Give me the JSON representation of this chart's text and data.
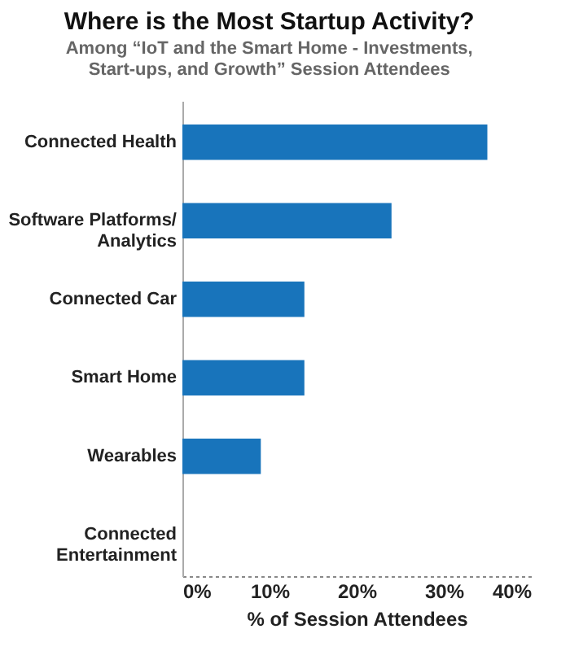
{
  "chart_data": {
    "type": "bar",
    "orientation": "horizontal",
    "title": "Where is the Most Startup Activity?",
    "subtitle": "Among “IoT and the Smart Home - Investments,\nStart-ups, and Growth” Session Attendees",
    "xlabel": "% of Session Attendees",
    "categories": [
      "Connected Health",
      "Software Platforms/ Analytics",
      "Connected Car",
      "Smart Home",
      "Wearables",
      "Connected Entertainment"
    ],
    "values": [
      35,
      24,
      14,
      14,
      9,
      0
    ],
    "color": "#1874bb",
    "xlim": [
      0,
      40
    ],
    "xticks": [
      {
        "value": 0,
        "label": "0%"
      },
      {
        "value": 10,
        "label": "10%"
      },
      {
        "value": 20,
        "label": "20%"
      },
      {
        "value": 30,
        "label": "30%"
      },
      {
        "value": 40,
        "label": "40%"
      }
    ],
    "grid": false
  }
}
